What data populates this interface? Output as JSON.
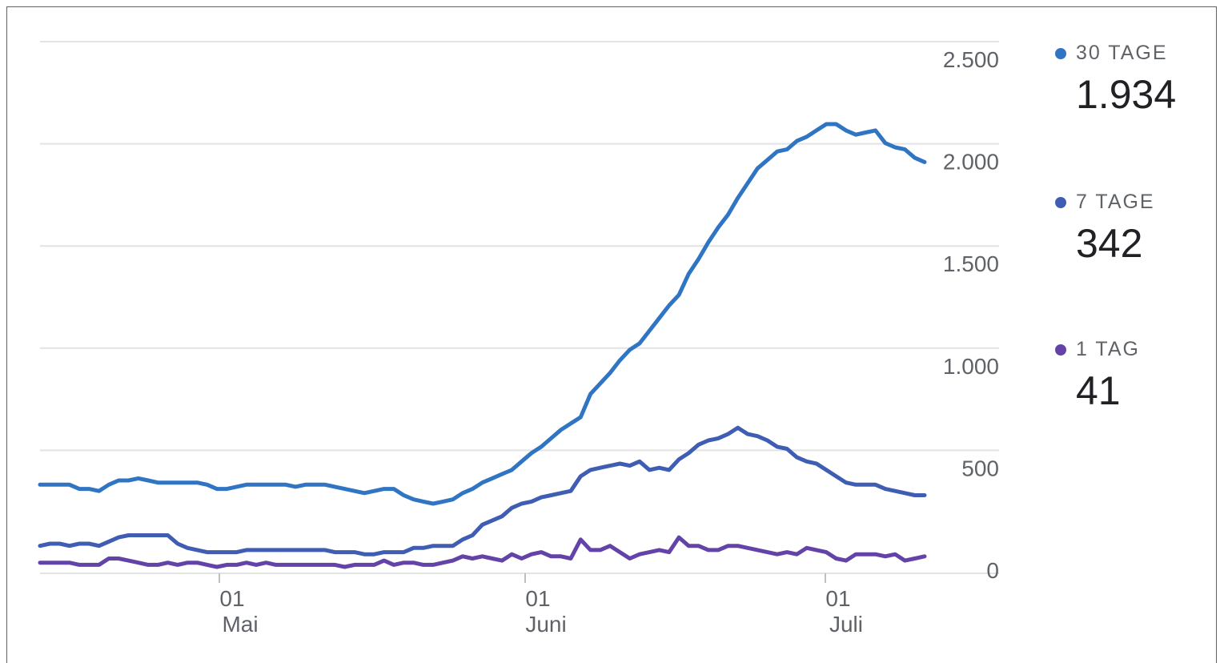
{
  "chart_data": {
    "type": "line",
    "title": "",
    "xlabel": "",
    "ylabel": "",
    "ylim": [
      0,
      2500
    ],
    "yticks": [
      0,
      500,
      1000,
      1500,
      2000,
      2500
    ],
    "ytick_labels": [
      "0",
      "500",
      "1.000",
      "1.500",
      "2.000",
      "2.500"
    ],
    "xticks": [
      {
        "day": "01",
        "month": "Mai"
      },
      {
        "day": "01",
        "month": "Juni"
      },
      {
        "day": "01",
        "month": "Juli"
      }
    ],
    "grid": true,
    "legend_position": "right",
    "series": [
      {
        "name": "30 TAGE",
        "color": "#3074c4",
        "current_value": "1.934",
        "values": [
          390,
          390,
          390,
          390,
          370,
          370,
          360,
          390,
          410,
          410,
          420,
          410,
          400,
          400,
          400,
          400,
          400,
          390,
          370,
          370,
          380,
          390,
          390,
          390,
          390,
          390,
          380,
          390,
          390,
          390,
          380,
          370,
          360,
          350,
          360,
          370,
          370,
          340,
          320,
          310,
          300,
          310,
          320,
          350,
          370,
          400,
          420,
          440,
          460,
          500,
          540,
          570,
          610,
          650,
          680,
          710,
          820,
          870,
          920,
          980,
          1030,
          1060,
          1120,
          1180,
          1240,
          1290,
          1390,
          1460,
          1540,
          1610,
          1670,
          1750,
          1820,
          1890,
          1930,
          1970,
          1980,
          2020,
          2040,
          2070,
          2100,
          2100,
          2070,
          2050,
          2060,
          2070,
          2010,
          1990,
          1980,
          1940,
          1920
        ]
      },
      {
        "name": "7 TAGE",
        "color": "#3f5db3",
        "current_value": "342",
        "values": [
          100,
          110,
          110,
          100,
          110,
          110,
          100,
          120,
          140,
          150,
          150,
          150,
          150,
          150,
          110,
          90,
          80,
          70,
          70,
          70,
          70,
          80,
          80,
          80,
          80,
          80,
          80,
          80,
          80,
          80,
          70,
          70,
          70,
          60,
          60,
          70,
          70,
          70,
          90,
          90,
          100,
          100,
          100,
          130,
          150,
          200,
          220,
          240,
          280,
          300,
          310,
          330,
          340,
          350,
          360,
          430,
          460,
          470,
          480,
          490,
          480,
          500,
          460,
          470,
          460,
          510,
          540,
          580,
          600,
          610,
          630,
          660,
          630,
          620,
          600,
          570,
          560,
          520,
          500,
          490,
          460,
          430,
          400,
          390,
          390,
          390,
          370,
          360,
          350,
          340,
          340
        ]
      },
      {
        "name": "1 TAG",
        "color": "#6443a8",
        "current_value": "41",
        "values": [
          20,
          20,
          20,
          20,
          10,
          10,
          10,
          40,
          40,
          30,
          20,
          10,
          10,
          20,
          10,
          20,
          20,
          10,
          0,
          10,
          10,
          20,
          10,
          20,
          10,
          10,
          10,
          10,
          10,
          10,
          10,
          0,
          10,
          10,
          10,
          30,
          10,
          20,
          20,
          10,
          10,
          20,
          30,
          50,
          40,
          50,
          40,
          30,
          60,
          40,
          60,
          70,
          50,
          50,
          40,
          130,
          80,
          80,
          100,
          70,
          40,
          60,
          70,
          80,
          70,
          140,
          100,
          100,
          80,
          80,
          100,
          100,
          90,
          80,
          70,
          60,
          70,
          60,
          90,
          80,
          70,
          40,
          30,
          60,
          60,
          60,
          50,
          60,
          30,
          40,
          50
        ]
      }
    ]
  }
}
